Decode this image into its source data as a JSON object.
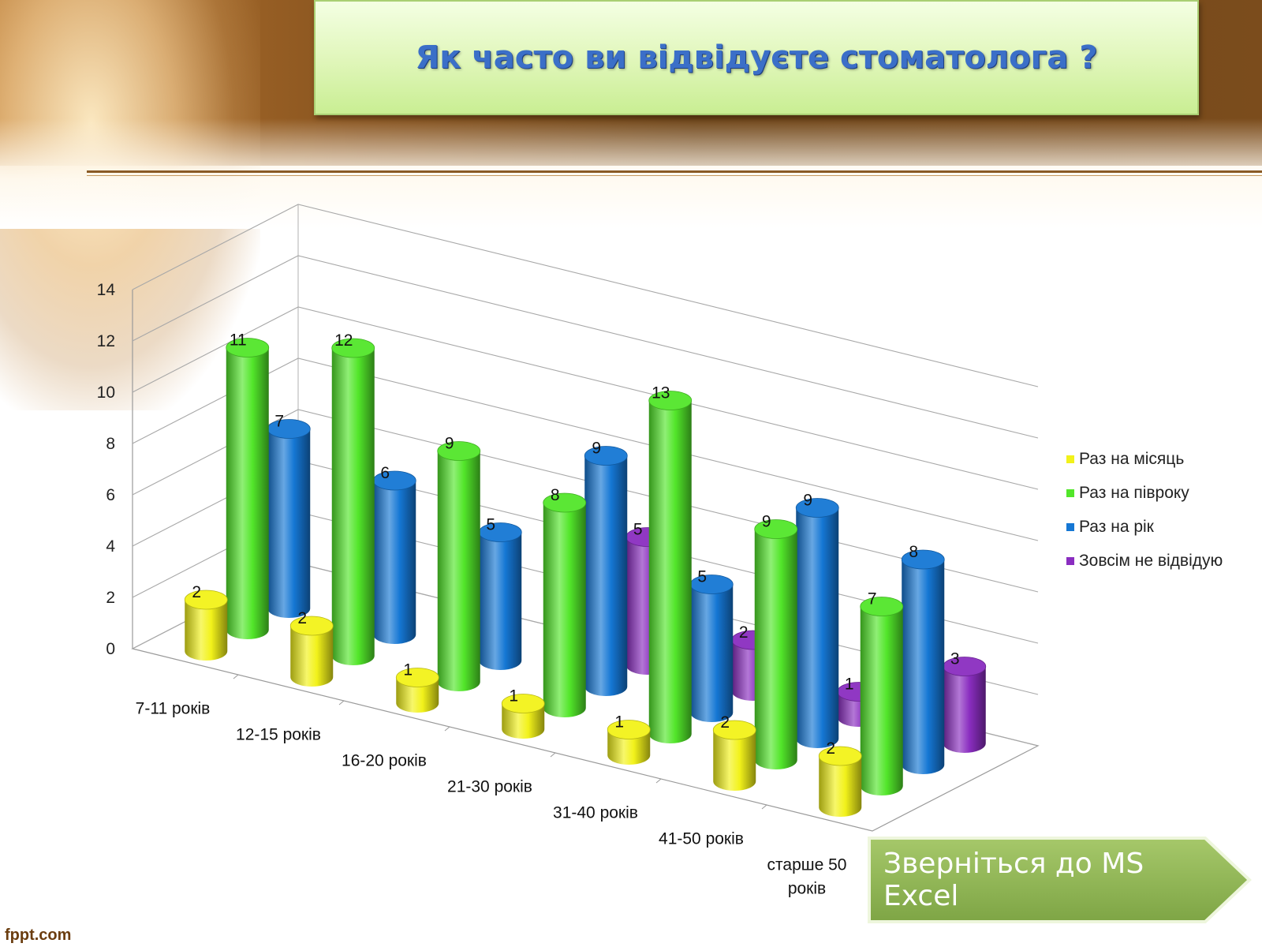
{
  "slide": {
    "title": "Як часто ви відвідуєте стоматолога ?",
    "action_button": "Зверніться до MS Excel",
    "footer": "fppt.com"
  },
  "colors": {
    "Раз на місяць": "#f2f21a",
    "Раз на півроку": "#52e62a",
    "Раз на рік": "#1577d4",
    "Зовсім не відвідую": "#8a2dc0"
  },
  "chart_data": {
    "type": "bar",
    "style": "3d-cylinder",
    "categories": [
      "7-11 років",
      "12-15 років",
      "16-20 років",
      "21-30 років",
      "31-40 років",
      "41-50 років",
      "старше 50 років"
    ],
    "series": [
      {
        "name": "Раз на місяць",
        "values": [
          2,
          2,
          1,
          1,
          1,
          2,
          2
        ]
      },
      {
        "name": "Раз на півроку",
        "values": [
          11,
          12,
          9,
          8,
          13,
          9,
          7
        ]
      },
      {
        "name": "Раз на рік",
        "values": [
          7,
          6,
          5,
          9,
          5,
          9,
          8
        ]
      },
      {
        "name": "Зовсім не відвідую",
        "values": [
          null,
          null,
          null,
          5,
          2,
          1,
          3
        ]
      }
    ],
    "yticks": [
      0,
      2,
      4,
      6,
      8,
      10,
      12,
      14
    ],
    "ylim": [
      0,
      14
    ],
    "grid": true,
    "legend": "right"
  }
}
